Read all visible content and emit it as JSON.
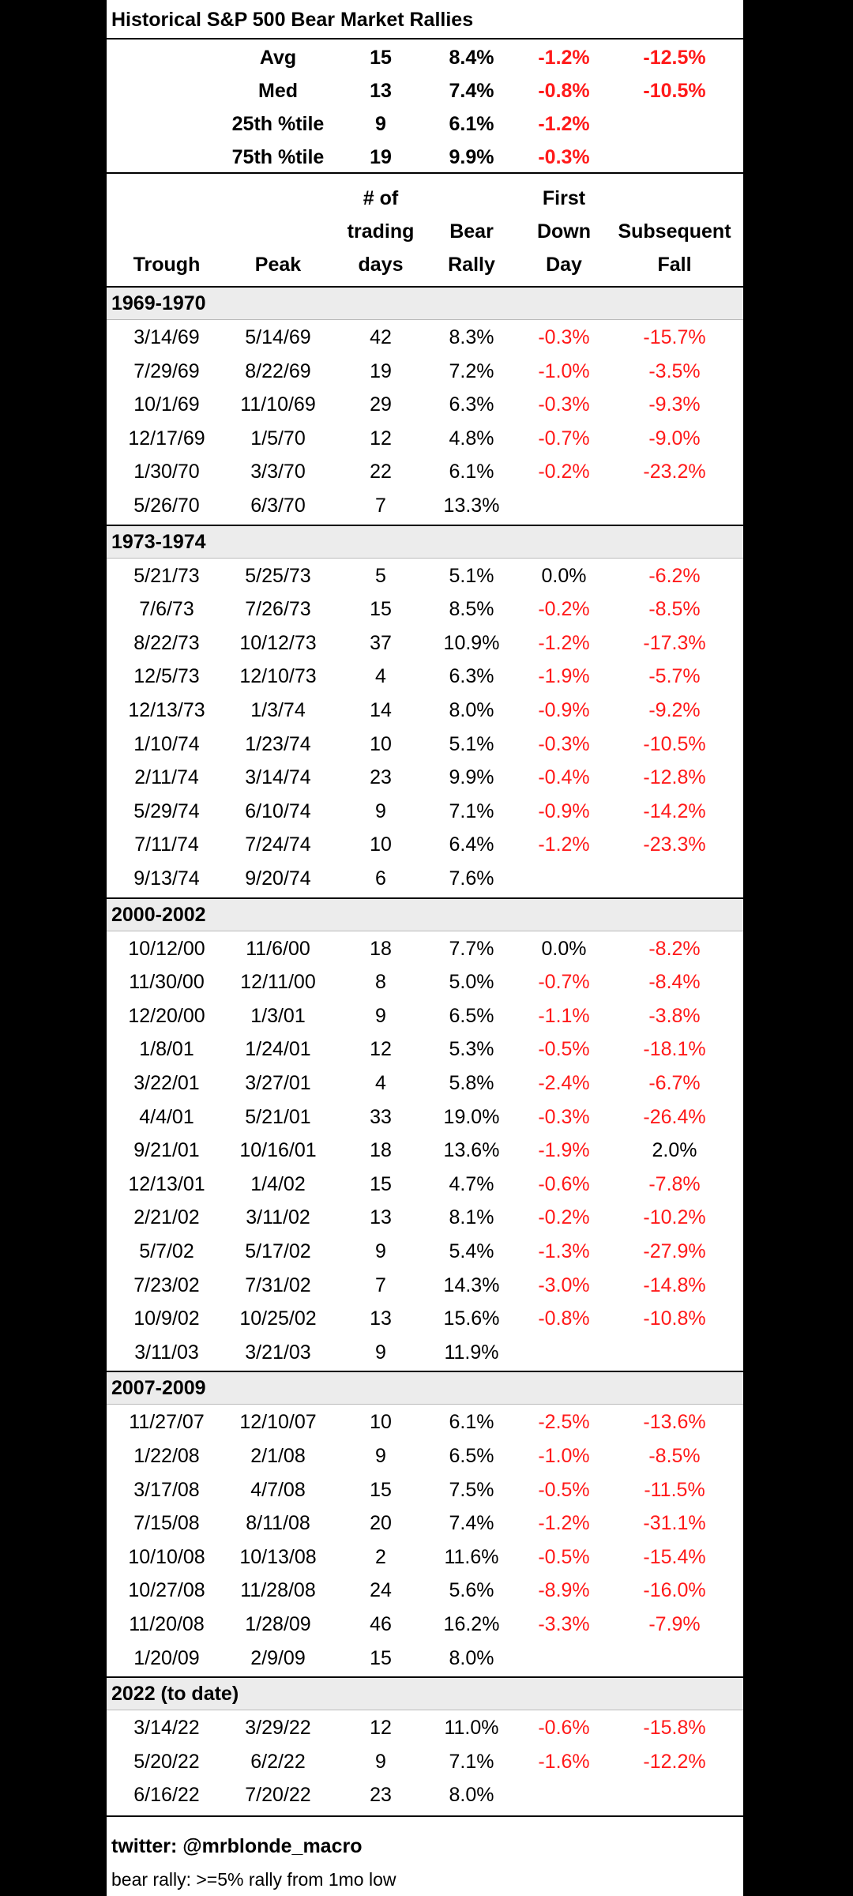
{
  "header": {
    "title": "Historical S&P 500 Bear Market Rallies"
  },
  "summary": [
    {
      "label": "Avg",
      "values": [
        15,
        "8.4%",
        "-1.2%",
        "-12.5%"
      ]
    },
    {
      "label": "Med",
      "values": [
        13,
        "7.4%",
        "-0.8%",
        "-10.5%"
      ]
    },
    {
      "label": "25th %tile",
      "values": [
        9,
        "6.1%",
        "-1.2%"
      ]
    },
    {
      "label": "75th %tile",
      "values": [
        19,
        "9.9%",
        "-0.3%"
      ]
    }
  ],
  "columns": [
    [
      "Trough"
    ],
    [
      "Peak"
    ],
    [
      "# of",
      "trading",
      "days"
    ],
    [
      "Bear",
      "Rally"
    ],
    [
      "First",
      "Down",
      "Day"
    ],
    [
      "Subsequent",
      "Fall"
    ]
  ],
  "groups": [
    {
      "label": "1969-1970",
      "rows": [
        [
          "3/14/69",
          "5/14/69",
          42,
          "8.3%",
          "-0.3%",
          "-15.7%"
        ],
        [
          "7/29/69",
          "8/22/69",
          19,
          "7.2%",
          "-1.0%",
          "-3.5%"
        ],
        [
          "10/1/69",
          "11/10/69",
          29,
          "6.3%",
          "-0.3%",
          "-9.3%"
        ],
        [
          "12/17/69",
          "1/5/70",
          12,
          "4.8%",
          "-0.7%",
          "-9.0%"
        ],
        [
          "1/30/70",
          "3/3/70",
          22,
          "6.1%",
          "-0.2%",
          "-23.2%"
        ],
        [
          "5/26/70",
          "6/3/70",
          7,
          "13.3%"
        ]
      ]
    },
    {
      "label": "1973-1974",
      "rows": [
        [
          "5/21/73",
          "5/25/73",
          5,
          "5.1%",
          "0.0%",
          "-6.2%"
        ],
        [
          "7/6/73",
          "7/26/73",
          15,
          "8.5%",
          "-0.2%",
          "-8.5%"
        ],
        [
          "8/22/73",
          "10/12/73",
          37,
          "10.9%",
          "-1.2%",
          "-17.3%"
        ],
        [
          "12/5/73",
          "12/10/73",
          4,
          "6.3%",
          "-1.9%",
          "-5.7%"
        ],
        [
          "12/13/73",
          "1/3/74",
          14,
          "8.0%",
          "-0.9%",
          "-9.2%"
        ],
        [
          "1/10/74",
          "1/23/74",
          10,
          "5.1%",
          "-0.3%",
          "-10.5%"
        ],
        [
          "2/11/74",
          "3/14/74",
          23,
          "9.9%",
          "-0.4%",
          "-12.8%"
        ],
        [
          "5/29/74",
          "6/10/74",
          9,
          "7.1%",
          "-0.9%",
          "-14.2%"
        ],
        [
          "7/11/74",
          "7/24/74",
          10,
          "6.4%",
          "-1.2%",
          "-23.3%"
        ],
        [
          "9/13/74",
          "9/20/74",
          6,
          "7.6%"
        ]
      ]
    },
    {
      "label": "2000-2002",
      "rows": [
        [
          "10/12/00",
          "11/6/00",
          18,
          "7.7%",
          "0.0%",
          "-8.2%"
        ],
        [
          "11/30/00",
          "12/11/00",
          8,
          "5.0%",
          "-0.7%",
          "-8.4%"
        ],
        [
          "12/20/00",
          "1/3/01",
          9,
          "6.5%",
          "-1.1%",
          "-3.8%"
        ],
        [
          "1/8/01",
          "1/24/01",
          12,
          "5.3%",
          "-0.5%",
          "-18.1%"
        ],
        [
          "3/22/01",
          "3/27/01",
          4,
          "5.8%",
          "-2.4%",
          "-6.7%"
        ],
        [
          "4/4/01",
          "5/21/01",
          33,
          "19.0%",
          "-0.3%",
          "-26.4%"
        ],
        [
          "9/21/01",
          "10/16/01",
          18,
          "13.6%",
          "-1.9%",
          "2.0%"
        ],
        [
          "12/13/01",
          "1/4/02",
          15,
          "4.7%",
          "-0.6%",
          "-7.8%"
        ],
        [
          "2/21/02",
          "3/11/02",
          13,
          "8.1%",
          "-0.2%",
          "-10.2%"
        ],
        [
          "5/7/02",
          "5/17/02",
          9,
          "5.4%",
          "-1.3%",
          "-27.9%"
        ],
        [
          "7/23/02",
          "7/31/02",
          7,
          "14.3%",
          "-3.0%",
          "-14.8%"
        ],
        [
          "10/9/02",
          "10/25/02",
          13,
          "15.6%",
          "-0.8%",
          "-10.8%"
        ],
        [
          "3/11/03",
          "3/21/03",
          9,
          "11.9%"
        ]
      ]
    },
    {
      "label": "2007-2009",
      "rows": [
        [
          "11/27/07",
          "12/10/07",
          10,
          "6.1%",
          "-2.5%",
          "-13.6%"
        ],
        [
          "1/22/08",
          "2/1/08",
          9,
          "6.5%",
          "-1.0%",
          "-8.5%"
        ],
        [
          "3/17/08",
          "4/7/08",
          15,
          "7.5%",
          "-0.5%",
          "-11.5%"
        ],
        [
          "7/15/08",
          "8/11/08",
          20,
          "7.4%",
          "-1.2%",
          "-31.1%"
        ],
        [
          "10/10/08",
          "10/13/08",
          2,
          "11.6%",
          "-0.5%",
          "-15.4%"
        ],
        [
          "10/27/08",
          "11/28/08",
          24,
          "5.6%",
          "-8.9%",
          "-16.0%"
        ],
        [
          "11/20/08",
          "1/28/09",
          46,
          "16.2%",
          "-3.3%",
          "-7.9%"
        ],
        [
          "1/20/09",
          "2/9/09",
          15,
          "8.0%"
        ]
      ]
    },
    {
      "label": "2022 (to date)",
      "rows": [
        [
          "3/14/22",
          "3/29/22",
          12,
          "11.0%",
          "-0.6%",
          "-15.8%"
        ],
        [
          "5/20/22",
          "6/2/22",
          9,
          "7.1%",
          "-1.6%",
          "-12.2%"
        ],
        [
          "6/16/22",
          "7/20/22",
          23,
          "8.0%"
        ]
      ]
    }
  ],
  "footer": [
    "twitter: @mrblonde_macro",
    "bear rally: >=5% rally from 1mo low"
  ],
  "negative_color": "#ff1a1a"
}
